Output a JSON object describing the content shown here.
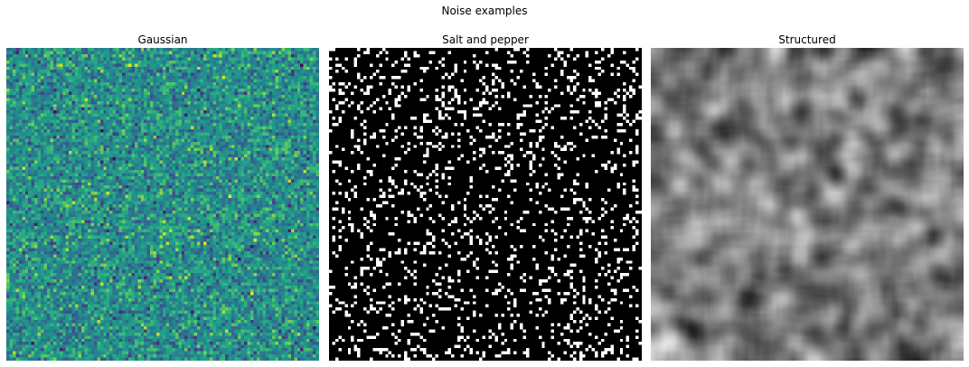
{
  "title": "Noise examples",
  "chart_data": [
    {
      "type": "heatmap",
      "title": "Gaussian",
      "colormap": "viridis",
      "grid_size": [
        100,
        100
      ],
      "axis": "off"
    },
    {
      "type": "heatmap",
      "title": "Salt and pepper",
      "colormap": "gray",
      "grid_size": [
        100,
        100
      ],
      "salt_fraction": 0.15,
      "axis": "off"
    },
    {
      "type": "heatmap",
      "title": "Structured",
      "colormap": "gray",
      "grid_size": [
        100,
        100
      ],
      "interpolation": "smooth",
      "axis": "off"
    }
  ]
}
